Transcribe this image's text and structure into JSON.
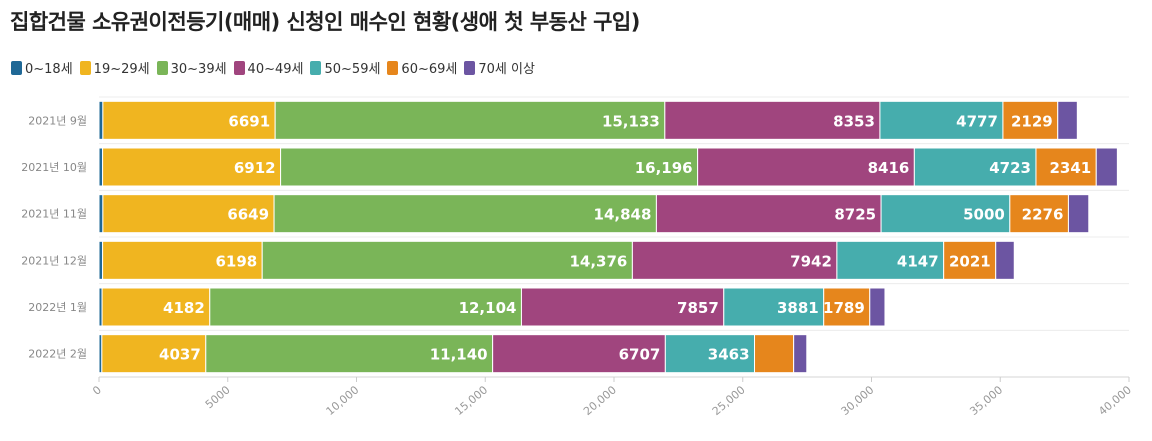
{
  "title": "집합건물 소유권이전등기(매매) 신청인 매수인 현황(생애 첫 부동산 구입)",
  "chart_data": {
    "type": "bar",
    "orientation": "horizontal",
    "stacked": true,
    "categories": [
      "2021년 9월",
      "2021년 10월",
      "2021년 11월",
      "2021년 12월",
      "2022년 1월",
      "2022년 2월"
    ],
    "series": [
      {
        "name": "0~18세",
        "color": "#1f6896",
        "values": [
          150,
          140,
          150,
          140,
          120,
          110
        ]
      },
      {
        "name": "19~29세",
        "color": "#f0b520",
        "values": [
          6691,
          6912,
          6649,
          6198,
          4182,
          4037
        ]
      },
      {
        "name": "30~39세",
        "color": "#7ab558",
        "values": [
          15133,
          16196,
          14848,
          14376,
          12104,
          11140
        ]
      },
      {
        "name": "40~49세",
        "color": "#a0457e",
        "values": [
          8353,
          8416,
          8725,
          7942,
          7857,
          6707
        ]
      },
      {
        "name": "50~59세",
        "color": "#46adad",
        "values": [
          4777,
          4723,
          5000,
          4147,
          3881,
          3463
        ]
      },
      {
        "name": "60~69세",
        "color": "#e6861c",
        "values": [
          2129,
          2341,
          2276,
          2021,
          1789,
          1520
        ]
      },
      {
        "name": "70세 이상",
        "color": "#6c55a2",
        "values": [
          760,
          820,
          790,
          720,
          590,
          510
        ]
      }
    ],
    "data_labels": [
      [
        null,
        "6691",
        "15,133",
        "8353",
        "4777",
        "2129",
        null
      ],
      [
        null,
        "6912",
        "16,196",
        "8416",
        "4723",
        "2341",
        null
      ],
      [
        null,
        "6649",
        "14,848",
        "8725",
        "5000",
        "2276",
        null
      ],
      [
        null,
        "6198",
        "14,376",
        "7942",
        "4147",
        "2021",
        null
      ],
      [
        null,
        "4182",
        "12,104",
        "7857",
        "3881",
        "1789",
        null
      ],
      [
        null,
        "4037",
        "11,140",
        "6707",
        "3463",
        null,
        null
      ]
    ],
    "xlim": [
      0,
      40000
    ],
    "xticks": [
      0,
      5000,
      10000,
      15000,
      20000,
      25000,
      30000,
      35000,
      40000
    ],
    "xtick_labels": [
      "0",
      "5000",
      "10,000",
      "15,000",
      "20,000",
      "25,000",
      "30,000",
      "35,000",
      "40,000"
    ],
    "legend_position": "top-left",
    "grid": true
  }
}
